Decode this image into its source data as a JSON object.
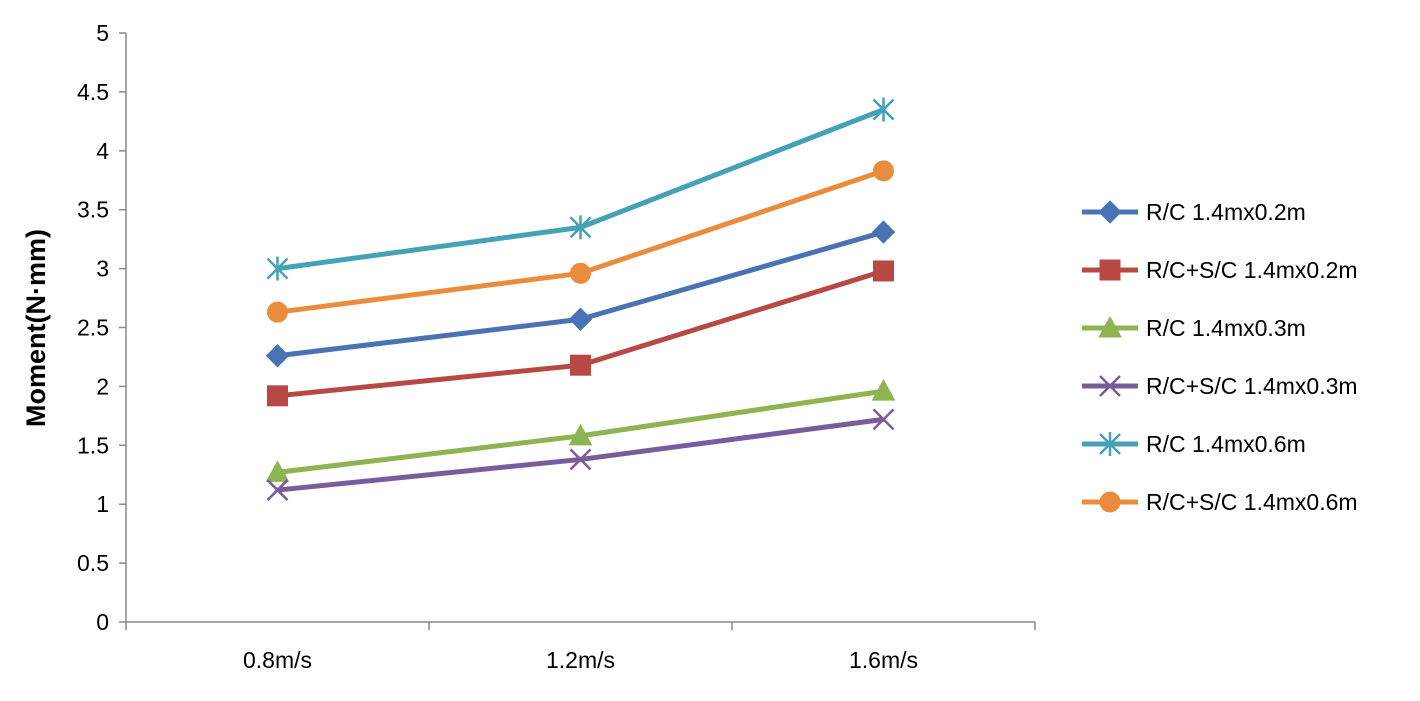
{
  "chart_data": {
    "type": "line",
    "title": "",
    "xlabel": "",
    "ylabel": "Moment(N·mm)",
    "categories": [
      "0.8m/s",
      "1.2m/s",
      "1.6m/s"
    ],
    "ylim": [
      0,
      5
    ],
    "yticks": [
      "0",
      "0.5",
      "1",
      "1.5",
      "2",
      "2.5",
      "3",
      "3.5",
      "4",
      "4.5",
      "5"
    ],
    "grid": false,
    "legend_position": "right",
    "series": [
      {
        "name": "R/C 1.4mx0.2m",
        "values": [
          2.26,
          2.57,
          3.31
        ],
        "color": "#4a73b3",
        "marker": "diamond"
      },
      {
        "name": "R/C+S/C 1.4mx0.2m",
        "values": [
          1.92,
          2.18,
          2.98
        ],
        "color": "#b84843",
        "marker": "square"
      },
      {
        "name": "R/C 1.4mx0.3m",
        "values": [
          1.27,
          1.58,
          1.96
        ],
        "color": "#8db450",
        "marker": "triangle"
      },
      {
        "name": "R/C+S/C 1.4mx0.3m",
        "values": [
          1.12,
          1.38,
          1.72
        ],
        "color": "#7a5c9c",
        "marker": "x"
      },
      {
        "name": "R/C 1.4mx0.6m",
        "values": [
          3.0,
          3.35,
          4.35
        ],
        "color": "#44a1b6",
        "marker": "star"
      },
      {
        "name": "R/C+S/C 1.4mx0.6m",
        "values": [
          2.63,
          2.96,
          3.83
        ],
        "color": "#eb8b3c",
        "marker": "circle"
      }
    ]
  }
}
